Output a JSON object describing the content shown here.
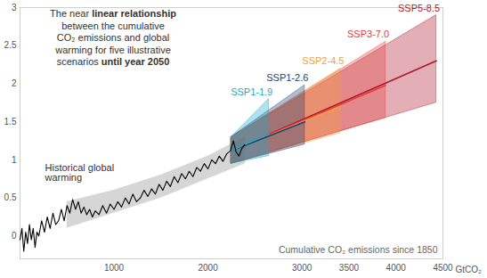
{
  "chart_data": {
    "type": "line",
    "annotation": {
      "lines": [
        "The near linear relationship",
        "between the cumulative",
        "CO₂ emissions and global",
        "warming for five illustrative",
        "scenarios until year 2050"
      ],
      "bold": [
        "linear relationship",
        "until year 2050"
      ]
    },
    "xlabel": "Cumulative CO₂ emissions since 1850",
    "xunit": "GtCO₂",
    "xlim": [
      0,
      4500
    ],
    "xticks": [
      1000,
      2000,
      3000,
      3500,
      4000,
      4500
    ],
    "ylim": [
      -0.3,
      3
    ],
    "yticks": [
      0,
      0.5,
      1,
      1.5,
      2,
      2.5,
      3
    ],
    "grid": false,
    "series": [
      {
        "name": "Historical global warming",
        "color": "#000000",
        "x": [
          0,
          20,
          40,
          60,
          80,
          100,
          120,
          140,
          160,
          180,
          200,
          230,
          260,
          290,
          320,
          350,
          380,
          410,
          440,
          470,
          500,
          530,
          560,
          590,
          620,
          650,
          680,
          710,
          740,
          770,
          800,
          840,
          880,
          920,
          960,
          1000,
          1040,
          1080,
          1120,
          1160,
          1200,
          1240,
          1280,
          1320,
          1360,
          1400,
          1440,
          1480,
          1520,
          1560,
          1600,
          1640,
          1680,
          1720,
          1760,
          1800,
          1840,
          1880,
          1920,
          1960,
          2000,
          2040,
          2080,
          2120,
          2160,
          2200,
          2240,
          2270,
          2300,
          2330,
          2360,
          2390
        ],
        "values": [
          -0.05,
          0.1,
          -0.2,
          0.05,
          -0.1,
          0.15,
          -0.05,
          0.1,
          -0.15,
          0.05,
          0.0,
          0.2,
          0.05,
          0.25,
          0.1,
          0.3,
          0.15,
          0.2,
          0.35,
          0.2,
          0.4,
          0.3,
          0.48,
          0.35,
          0.45,
          0.3,
          0.38,
          0.28,
          0.35,
          0.25,
          0.33,
          0.28,
          0.4,
          0.3,
          0.42,
          0.35,
          0.45,
          0.38,
          0.5,
          0.42,
          0.55,
          0.45,
          0.5,
          0.6,
          0.52,
          0.62,
          0.55,
          0.68,
          0.6,
          0.72,
          0.65,
          0.78,
          0.7,
          0.82,
          0.75,
          0.85,
          0.78,
          0.9,
          0.85,
          0.95,
          0.88,
          1.0,
          0.95,
          1.05,
          0.98,
          1.08,
          1.12,
          1.25,
          1.1,
          1.05,
          1.15,
          1.2
        ],
        "band": {
          "color": "#c8c8c8",
          "x": [
            500,
            1000,
            1500,
            2000,
            2400
          ],
          "lower": [
            0.1,
            0.3,
            0.5,
            0.75,
            0.95
          ],
          "upper": [
            0.45,
            0.6,
            0.8,
            1.05,
            1.3
          ]
        }
      },
      {
        "name": "SSP1-1.9",
        "color": "#1ea9c9",
        "x": [
          2250,
          2650
        ],
        "values": [
          1.12,
          1.35
        ],
        "lower": [
          0.95,
          1.05
        ],
        "upper": [
          1.3,
          1.8
        ]
      },
      {
        "name": "SSP1-2.6",
        "color": "#1c3f78",
        "x": [
          2250,
          3030
        ],
        "values": [
          1.12,
          1.5
        ],
        "lower": [
          0.95,
          1.2
        ],
        "upper": [
          1.3,
          1.98
        ]
      },
      {
        "name": "SSP2-4.5",
        "color": "#f0a040",
        "x": [
          2250,
          3410
        ],
        "values": [
          1.12,
          1.7
        ],
        "lower": [
          0.95,
          1.35
        ],
        "upper": [
          1.3,
          2.2
        ]
      },
      {
        "name": "SSP3-7.0",
        "color": "#e3413b",
        "x": [
          2250,
          3890
        ],
        "values": [
          1.12,
          1.98
        ],
        "lower": [
          0.95,
          1.55
        ],
        "upper": [
          1.3,
          2.55
        ]
      },
      {
        "name": "SSP5-8.5",
        "color": "#b0182b",
        "x": [
          2250,
          4430
        ],
        "values": [
          1.12,
          2.3
        ],
        "lower": [
          0.95,
          1.75
        ],
        "upper": [
          1.3,
          2.9
        ]
      }
    ]
  }
}
